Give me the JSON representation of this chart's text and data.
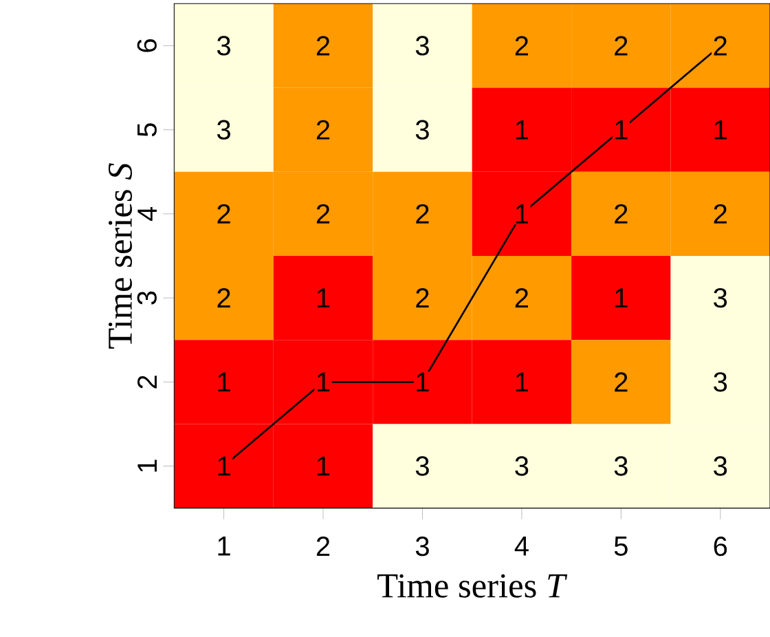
{
  "chart_data": {
    "type": "heatmap",
    "xlabel": "Time series *T*",
    "ylabel": "Time series *S*",
    "xlim": [
      0.5,
      6.5
    ],
    "xticks": [
      1,
      2,
      3,
      4,
      5,
      6
    ],
    "ylim": [
      0.5,
      6.5
    ],
    "yticks": [
      1,
      2,
      3,
      4,
      5,
      6
    ],
    "cells": [
      [
        3,
        2,
        3,
        2,
        2,
        2
      ],
      [
        3,
        2,
        3,
        1,
        1,
        1
      ],
      [
        2,
        2,
        2,
        1,
        2,
        2
      ],
      [
        2,
        1,
        2,
        2,
        1,
        3
      ],
      [
        1,
        1,
        1,
        1,
        2,
        3
      ],
      [
        1,
        1,
        3,
        3,
        3,
        3
      ]
    ],
    "data_labels": true,
    "colors": [
      "#ff0000",
      "#ff9a00",
      "#ffffdd"
    ],
    "series": [
      {
        "type": "line",
        "color": "#000000",
        "x": [
          1,
          2,
          3,
          4,
          5,
          6
        ],
        "values": [
          1,
          2,
          2,
          4,
          5,
          6
        ],
        "value_labels": [
          null,
          null,
          null,
          null,
          null,
          null
        ]
      }
    ]
  }
}
